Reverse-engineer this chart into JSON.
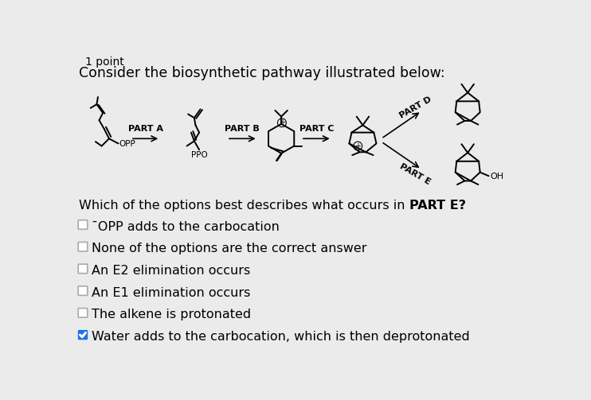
{
  "title_small": "1 point",
  "title_main": "Consider the biosynthetic pathway illustrated below:",
  "question_prefix": "Which of the options best describes what occurs in ",
  "question_bold": "PART E",
  "question_suffix": "?",
  "options": [
    "¯OPP adds to the carbocation",
    "None of the options are the correct answer",
    "An E2 elimination occurs",
    "An E1 elimination occurs",
    "The alkene is protonated",
    "Water adds to the carbocation, which is then deprotonated"
  ],
  "checked": [
    false,
    false,
    false,
    false,
    false,
    true
  ],
  "background_color": "#ebebeb",
  "text_color": "#000000",
  "check_bg_color": "#1a73e8",
  "lw": 1.4
}
